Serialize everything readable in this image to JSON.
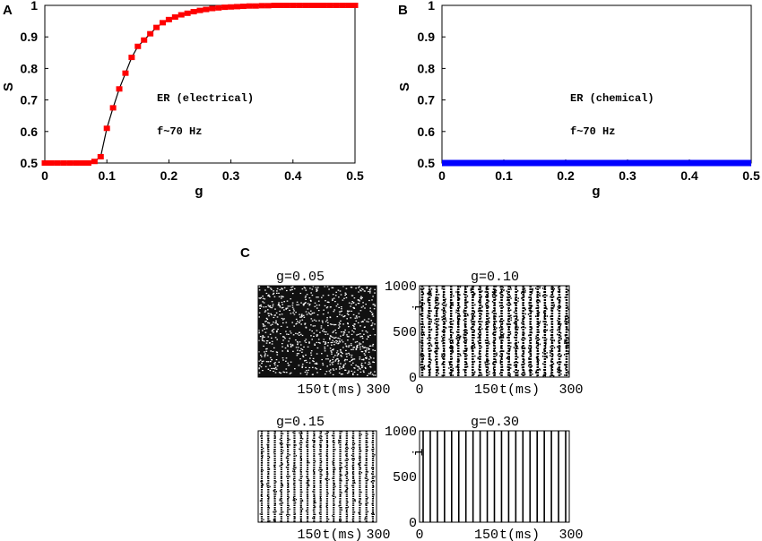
{
  "chart_data": [
    {
      "panel": "A",
      "type": "line",
      "xlabel": "g",
      "ylabel": "S",
      "xlim": [
        0,
        0.5
      ],
      "ylim": [
        0.5,
        1
      ],
      "xticks": [
        "0",
        "0.1",
        "0.2",
        "0.3",
        "0.4",
        "0.5"
      ],
      "yticks": [
        "0.5",
        "0.6",
        "0.7",
        "0.8",
        "0.9",
        "1"
      ],
      "annotations": [
        "ER (electrical)",
        "f~70 Hz"
      ],
      "series": [
        {
          "color": "#ff0000",
          "marker": "square",
          "x": [
            0,
            0.01,
            0.02,
            0.03,
            0.04,
            0.05,
            0.06,
            0.07,
            0.08,
            0.09,
            0.1,
            0.11,
            0.12,
            0.13,
            0.14,
            0.15,
            0.16,
            0.17,
            0.18,
            0.19,
            0.2,
            0.21,
            0.22,
            0.23,
            0.24,
            0.25,
            0.26,
            0.27,
            0.28,
            0.29,
            0.3,
            0.31,
            0.32,
            0.33,
            0.34,
            0.35,
            0.36,
            0.37,
            0.38,
            0.39,
            0.4,
            0.41,
            0.42,
            0.43,
            0.44,
            0.45,
            0.46,
            0.47,
            0.48,
            0.49,
            0.5
          ],
          "y": [
            0.5,
            0.5,
            0.5,
            0.5,
            0.5,
            0.5,
            0.5,
            0.5,
            0.505,
            0.52,
            0.61,
            0.675,
            0.735,
            0.785,
            0.835,
            0.87,
            0.89,
            0.91,
            0.93,
            0.945,
            0.955,
            0.963,
            0.97,
            0.975,
            0.98,
            0.984,
            0.987,
            0.99,
            0.992,
            0.994,
            0.995,
            0.996,
            0.997,
            0.998,
            0.998,
            0.999,
            0.999,
            1,
            1,
            1,
            1,
            1,
            1,
            1,
            1,
            1,
            1,
            1,
            1,
            1,
            1
          ]
        }
      ]
    },
    {
      "panel": "B",
      "type": "line",
      "xlabel": "g",
      "ylabel": "S",
      "xlim": [
        0,
        0.5
      ],
      "ylim": [
        0.5,
        1
      ],
      "xticks": [
        "0",
        "0.1",
        "0.2",
        "0.3",
        "0.4",
        "0.5"
      ],
      "yticks": [
        "0.5",
        "0.6",
        "0.7",
        "0.8",
        "0.9",
        "1"
      ],
      "annotations": [
        "ER (chemical)",
        "f~70 Hz"
      ],
      "series": [
        {
          "color": "#0000ff",
          "x": [
            0,
            0.5
          ],
          "y": [
            0.5,
            0.5
          ]
        }
      ]
    },
    {
      "panel": "C",
      "type": "scatter",
      "xlabel": "t(ms)",
      "ylabel": "i",
      "xlim": [
        0,
        300
      ],
      "ylim": [
        0,
        1000
      ],
      "xticks": [
        "0",
        "150",
        "300"
      ],
      "yticks": [
        "0",
        "500",
        "1000"
      ],
      "subplots": [
        {
          "title": "g=0.05",
          "pattern": "asynchronous"
        },
        {
          "title": "g=0.10",
          "pattern": "partially synchronous stripes"
        },
        {
          "title": "g=0.15",
          "pattern": "synchronous stripes with jitter"
        },
        {
          "title": "g=0.30",
          "pattern": "fully synchronous stripes"
        }
      ]
    }
  ]
}
